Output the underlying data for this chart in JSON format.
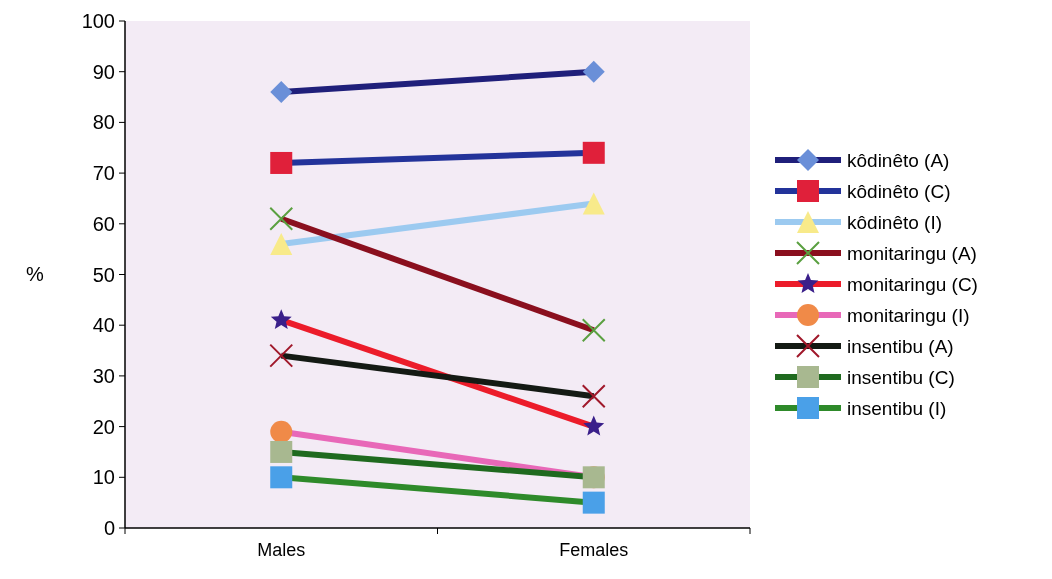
{
  "chart_data": {
    "type": "line",
    "ylabel": "%",
    "categories": [
      "Males",
      "Females"
    ],
    "ylim": [
      0,
      100
    ],
    "yticks": [
      0,
      10,
      20,
      30,
      40,
      50,
      60,
      70,
      80,
      90,
      100
    ],
    "legend": "right",
    "series": [
      {
        "name": "kôdinêto (A)",
        "color": "#1f1f7a",
        "marker": "diamond",
        "colors": [
          "#6a8fd8",
          "#6a8fd8"
        ],
        "values": [
          86,
          90
        ]
      },
      {
        "name": "kôdinêto (C)",
        "color": "#23339a",
        "marker": "square",
        "colors": [
          "#e0203a",
          "#e0203a"
        ],
        "values": [
          72,
          74
        ]
      },
      {
        "name": "kôdinêto (I)",
        "color": "#9ccaf0",
        "marker": "triangle",
        "colors": [
          "#f8ea8a",
          "#f8ea8a"
        ],
        "values": [
          56,
          64
        ]
      },
      {
        "name": "monitaringu (A)",
        "color": "#8a0f1e",
        "marker": "cross",
        "colors": [
          "#5aa040",
          "#5aa040"
        ],
        "values": [
          61,
          39
        ]
      },
      {
        "name": "monitaringu (C)",
        "color": "#ec1c2a",
        "marker": "star",
        "colors": [
          "#3a1f8a",
          "#3a1f8a"
        ],
        "values": [
          41,
          20
        ]
      },
      {
        "name": "monitaringu (I)",
        "color": "#e868b8",
        "marker": "circle",
        "colors": [
          "#f08a48",
          "#f08a48"
        ],
        "values": [
          19,
          10
        ]
      },
      {
        "name": "insentibu (A)",
        "color": "#141a14",
        "marker": "cross",
        "colors": [
          "#a0182a",
          "#a0182a"
        ],
        "values": [
          34,
          26
        ]
      },
      {
        "name": "insentibu (C)",
        "color": "#1f6a1f",
        "marker": "square",
        "colors": [
          "#a8b890",
          "#a8b890"
        ],
        "values": [
          15,
          10
        ]
      },
      {
        "name": "insentibu (I)",
        "color": "#2e8a2a",
        "marker": "square",
        "colors": [
          "#4aa0e8",
          "#4aa0e8"
        ],
        "values": [
          10,
          5
        ]
      }
    ]
  }
}
